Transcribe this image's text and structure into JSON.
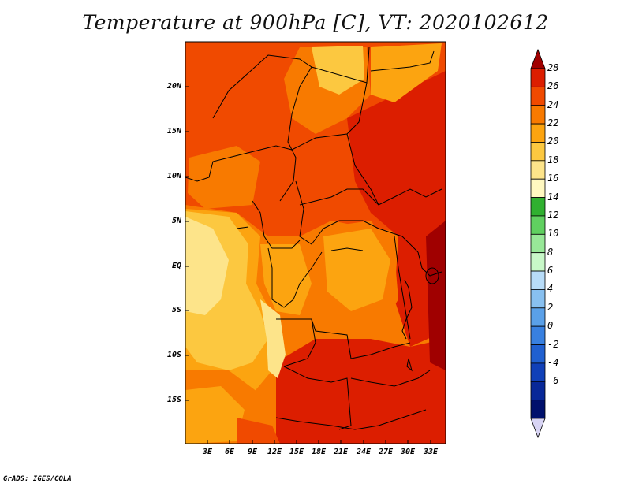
{
  "title": "Temperature at 900hPa [C], VT: 2020102612",
  "credit": "GrADS: IGES/COLA",
  "lat_labels": [
    "20N",
    "15N",
    "10N",
    "5N",
    "EQ",
    "5S",
    "10S",
    "15S"
  ],
  "lon_labels": [
    "3E",
    "6E",
    "9E",
    "12E",
    "15E",
    "18E",
    "21E",
    "24E",
    "27E",
    "30E",
    "33E"
  ],
  "colorbar": {
    "labels": [
      "28",
      "26",
      "24",
      "22",
      "20",
      "18",
      "16",
      "14",
      "12",
      "10",
      "8",
      "6",
      "4",
      "2",
      "0",
      "-2",
      "-4",
      "-6"
    ],
    "colors": [
      "#a00000",
      "#dc1e00",
      "#f04a00",
      "#f87a00",
      "#fca410",
      "#fcc840",
      "#fde48a",
      "#fff8c0",
      "#30b030",
      "#60d060",
      "#98e898",
      "#c8f8c8",
      "#b8dcf8",
      "#88c0f0",
      "#5aa0e8",
      "#3880e0",
      "#2060d0",
      "#1040b8",
      "#082898",
      "#00106c",
      "#d8d4f4"
    ]
  },
  "map_field_colors": {
    "hot": "#dc1e00",
    "warm": "#f04a00",
    "mid": "#f87a00",
    "mild": "#fca410",
    "cool": "#fcc840",
    "coolest": "#fde48a"
  }
}
